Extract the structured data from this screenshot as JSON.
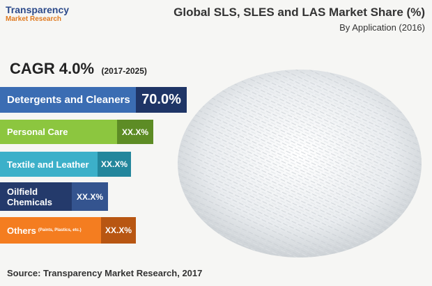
{
  "header": {
    "logo_name": "Transparency",
    "logo_sub": "Market Research",
    "title": "Global SLS, SLES and LAS Market Share (%)",
    "subtitle": "By Application (2016)"
  },
  "cagr": {
    "label": "CAGR 4.0%",
    "period": "(2017-2025)"
  },
  "items": [
    {
      "label": "Detergents and Cleaners",
      "value": "70.0%"
    },
    {
      "label": "Personal Care",
      "value": "XX.X%"
    },
    {
      "label": "Textile and Leather",
      "value": "XX.X%"
    },
    {
      "label": [
        "Oilfield",
        "Chemicals"
      ],
      "value": "XX.X%"
    },
    {
      "label": "Others",
      "note": "(Paints, Plastics, etc.)",
      "value": "XX.X%"
    }
  ],
  "source": "Source: Transparency Market Research, 2017"
}
